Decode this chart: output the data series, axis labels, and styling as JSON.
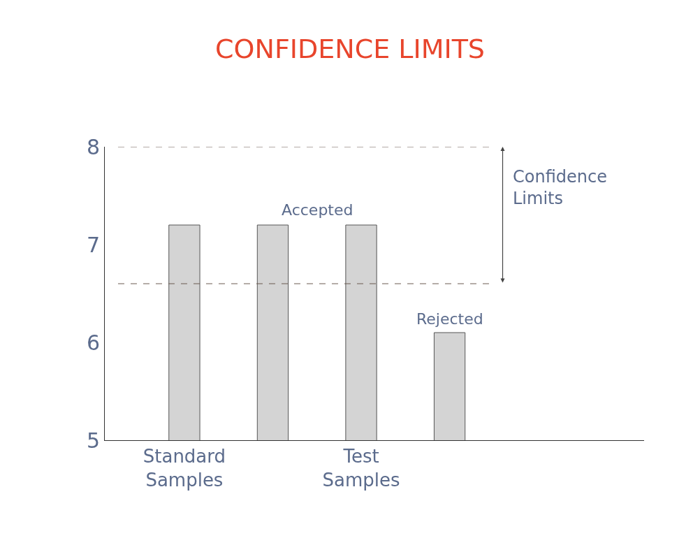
{
  "chart_data": {
    "type": "bar",
    "title": "CONFIDENCE LIMITS",
    "categories": [
      "Standard Samples",
      null,
      "Test Samples",
      null
    ],
    "values": [
      7.2,
      7.2,
      7.2,
      6.1
    ],
    "color": "#d4d4d4",
    "ylim": [
      5,
      8
    ],
    "yticks": [
      5,
      6,
      7,
      8
    ],
    "ref_lines": [
      {
        "axis": "y",
        "value": 8,
        "line_style": "dashed",
        "color": "#6b5a50"
      },
      {
        "axis": "y",
        "value": 6.6,
        "line_style": "dashed",
        "color": "#6b5a50"
      }
    ],
    "annotations": [
      "Accepted",
      "Rejected",
      "Confidence Limits"
    ]
  }
}
